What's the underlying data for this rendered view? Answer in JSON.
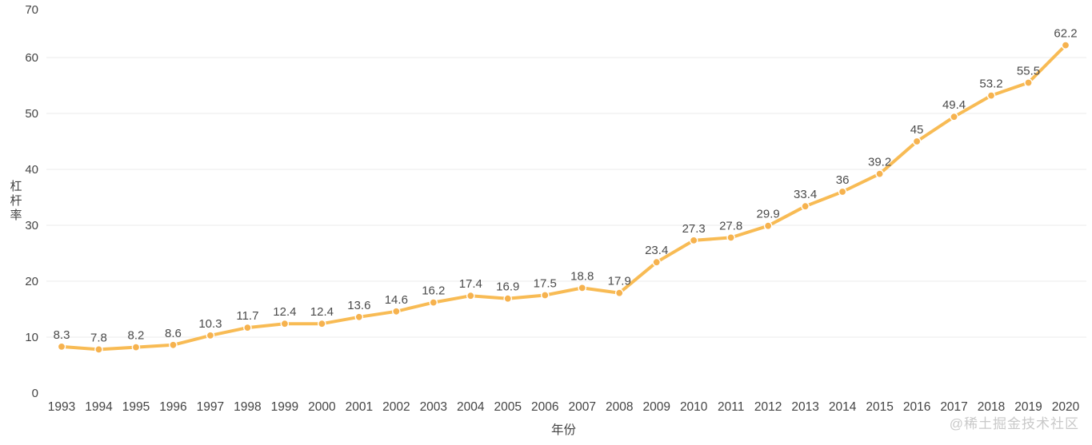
{
  "chart_data": {
    "type": "line",
    "title": "",
    "x": [
      "1993",
      "1994",
      "1995",
      "1996",
      "1997",
      "1998",
      "1999",
      "2000",
      "2001",
      "2002",
      "2003",
      "2004",
      "2005",
      "2006",
      "2007",
      "2008",
      "2009",
      "2010",
      "2011",
      "2012",
      "2013",
      "2014",
      "2015",
      "2016",
      "2017",
      "2018",
      "2019",
      "2020"
    ],
    "series": [
      {
        "name": "杠杆率",
        "values": [
          8.3,
          7.8,
          8.2,
          8.6,
          10.3,
          11.7,
          12.4,
          12.4,
          13.6,
          14.6,
          16.2,
          17.4,
          16.9,
          17.5,
          18.8,
          17.9,
          23.4,
          27.3,
          27.8,
          29.9,
          33.4,
          36,
          39.2,
          45,
          49.4,
          53.2,
          55.5,
          62.2
        ]
      }
    ],
    "xlabel": "年份",
    "ylabel": "杠杆率",
    "ylim": [
      0,
      70
    ],
    "yticks": [
      0,
      10,
      20,
      30,
      40,
      50,
      60,
      70
    ],
    "grid": true,
    "legend_position": "none",
    "data_labels_visible": true,
    "colors": {
      "line": "#F8BB54",
      "marker": "#F6B24E",
      "marker_border": "#FFFFFF",
      "grid": "#EFEFEF",
      "tick_text": "#444444",
      "data_label_text": "#4A4A4A",
      "axis_title_text": "#444444",
      "background": "#FFFFFF",
      "watermark_text": "#C9C9C9"
    }
  },
  "watermark": "@稀土掘金技术社区"
}
